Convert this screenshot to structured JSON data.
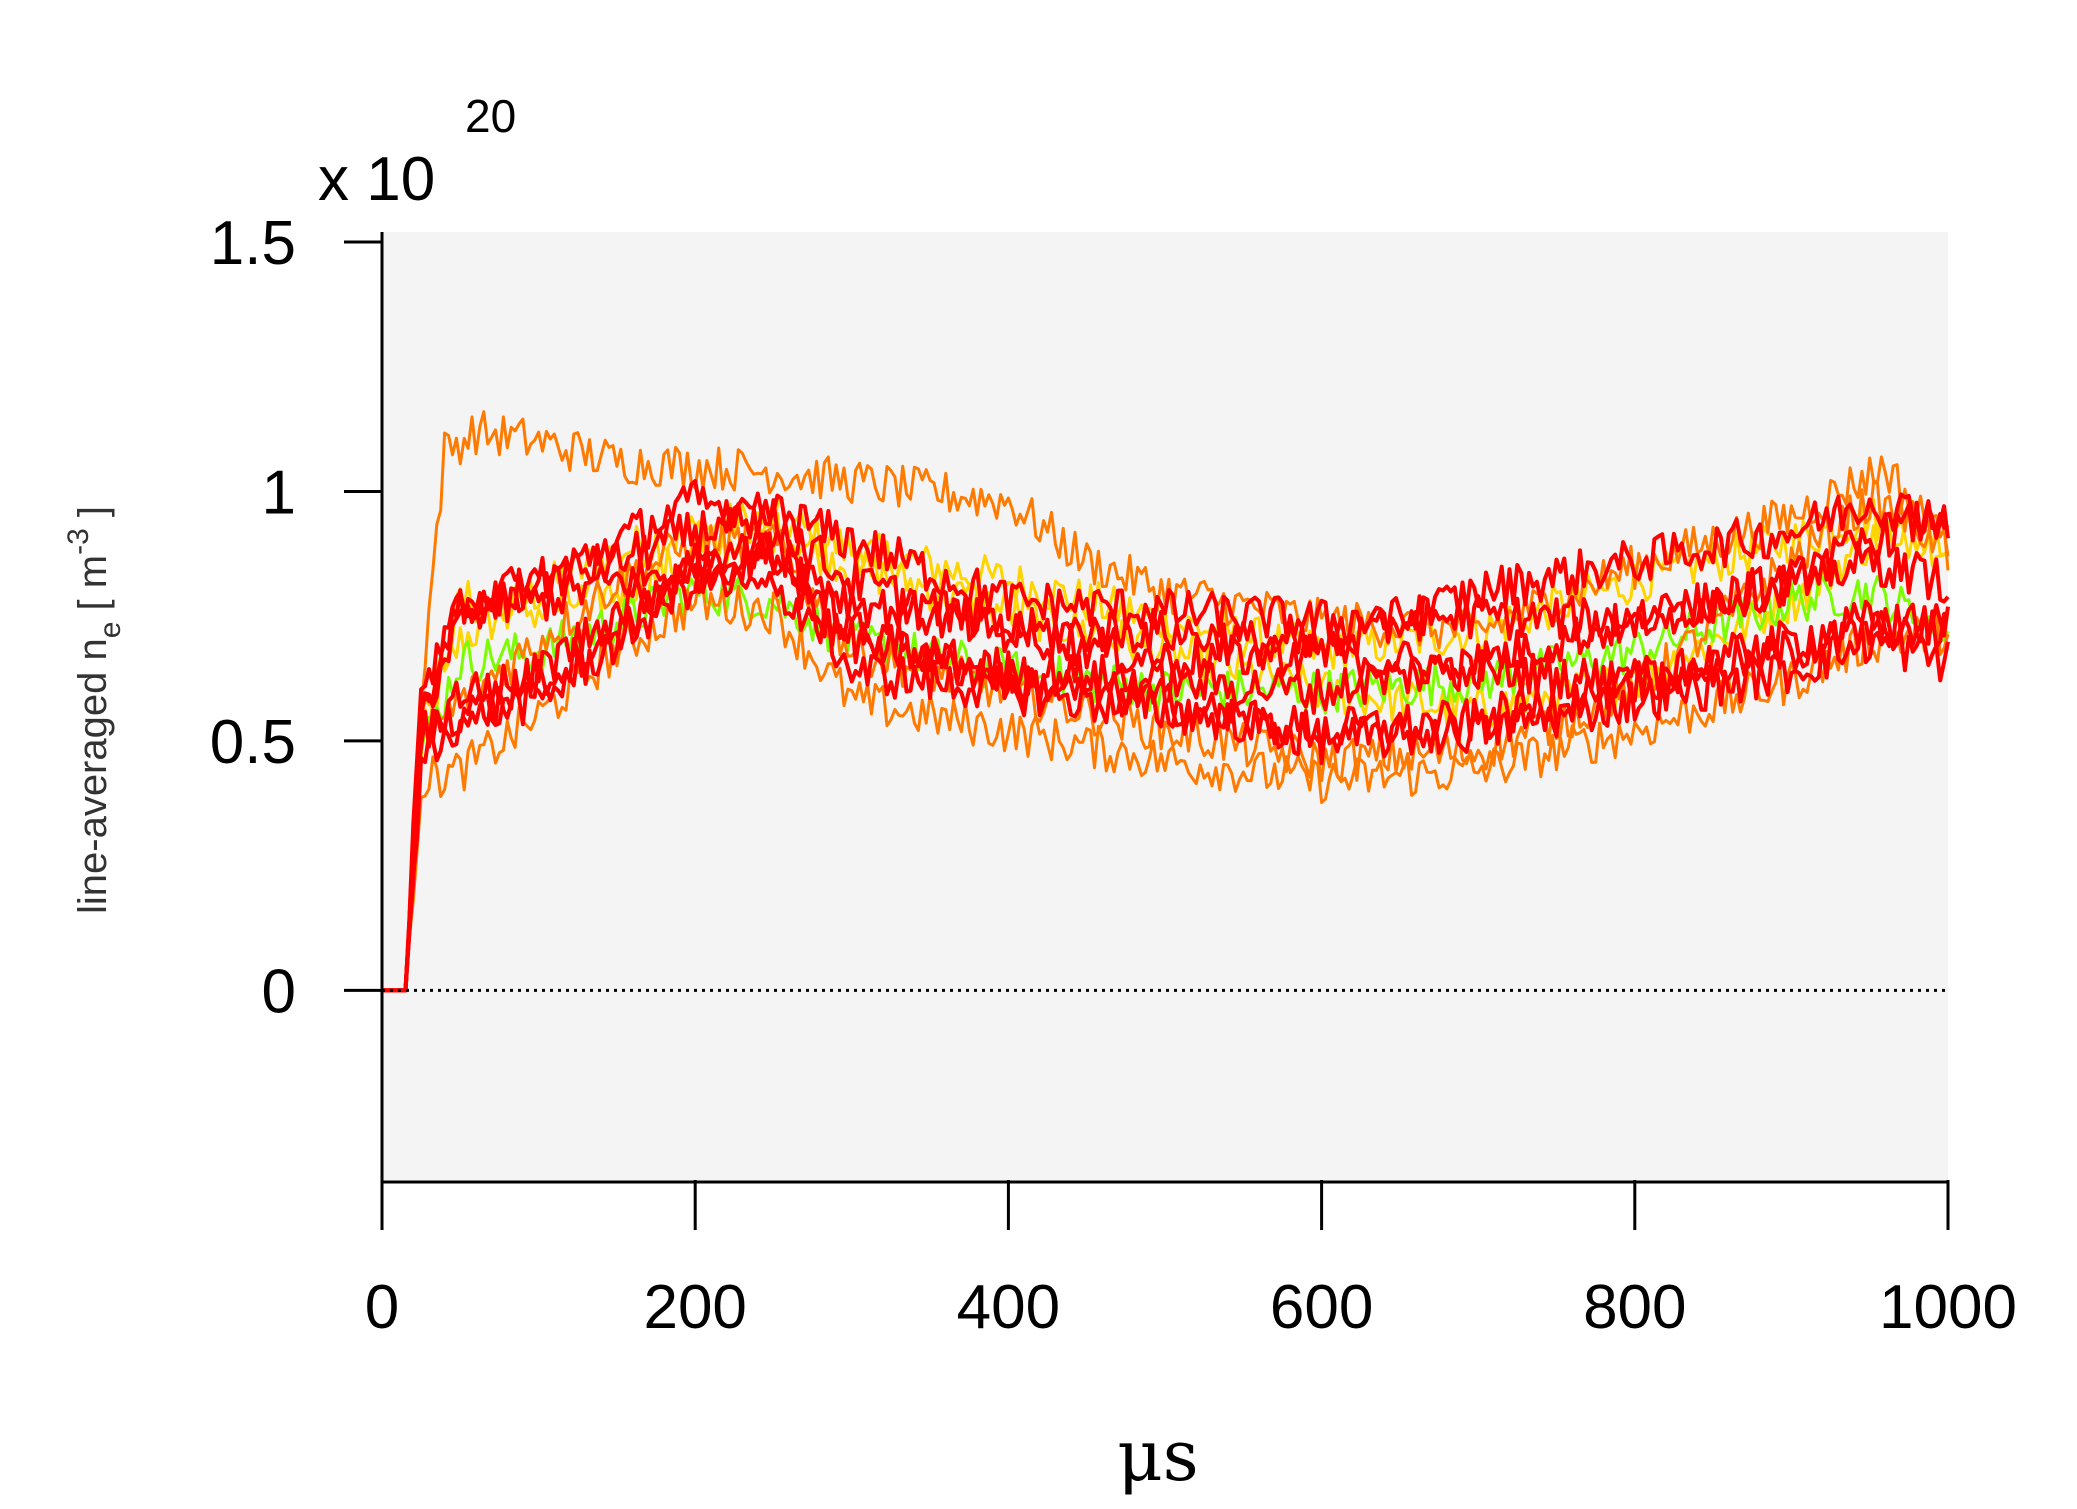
{
  "chart_data": {
    "type": "line",
    "xlabel": "μs",
    "ylabel_main": "line-averaged  n",
    "ylabel_sub": "e",
    "ylabel_unit_open": " [ m",
    "ylabel_unit_sup": "-3",
    "ylabel_unit_close": " ]",
    "y_multiplier": "x 10",
    "y_multiplier_exp": "20",
    "xlim": [
      0,
      1000
    ],
    "ylim": [
      -0.38,
      1.52
    ],
    "xticks": [
      0,
      200,
      400,
      600,
      800,
      1000
    ],
    "xtick_labels": [
      "0",
      "200",
      "400",
      "600",
      "800",
      "1000"
    ],
    "yticks": [
      0,
      0.5,
      1,
      1.5
    ],
    "ytick_labels": [
      "0",
      "0.5",
      "1",
      "1.5"
    ],
    "zero_line": {
      "y": 0,
      "style": "dotted"
    },
    "grid": false,
    "series": [
      {
        "color": "#FFD400",
        "x": [
          0,
          15,
          25,
          50,
          100,
          150,
          200,
          250,
          300,
          400,
          500,
          600,
          700,
          800,
          900,
          950,
          1000
        ],
        "y": [
          0,
          0,
          0.52,
          0.7,
          0.8,
          0.88,
          0.92,
          0.95,
          0.88,
          0.82,
          0.74,
          0.68,
          0.72,
          0.82,
          0.9,
          0.95,
          0.88
        ]
      },
      {
        "color": "#FFD400",
        "x": [
          0,
          15,
          25,
          50,
          100,
          150,
          200,
          250,
          300,
          400,
          500,
          600,
          700,
          800,
          900,
          950,
          1000
        ],
        "y": [
          0,
          0,
          0.5,
          0.78,
          0.76,
          0.8,
          0.87,
          0.92,
          0.85,
          0.76,
          0.68,
          0.6,
          0.56,
          0.62,
          0.78,
          0.9,
          0.92
        ]
      },
      {
        "color": "#7CFC00",
        "x": [
          0,
          15,
          25,
          50,
          100,
          150,
          200,
          250,
          300,
          400,
          500,
          600,
          700,
          800,
          900,
          950,
          1000
        ],
        "y": [
          0,
          0,
          0.48,
          0.66,
          0.68,
          0.74,
          0.8,
          0.78,
          0.7,
          0.64,
          0.6,
          0.6,
          0.62,
          0.68,
          0.78,
          0.8,
          0.72
        ]
      },
      {
        "color": "#FF7A00",
        "x": [
          0,
          15,
          25,
          40,
          60,
          100,
          150,
          200,
          250,
          300,
          350,
          400,
          450,
          500,
          600,
          700,
          800,
          900,
          960,
          1000
        ],
        "y": [
          0,
          0,
          0.6,
          1.08,
          1.12,
          1.1,
          1.06,
          1.05,
          1.04,
          1.02,
          1.0,
          0.98,
          0.86,
          0.8,
          0.74,
          0.72,
          0.85,
          0.95,
          1.05,
          0.88
        ]
      },
      {
        "color": "#FF7A00",
        "x": [
          0,
          15,
          25,
          50,
          100,
          150,
          200,
          250,
          300,
          400,
          500,
          600,
          700,
          800,
          900,
          950,
          1000
        ],
        "y": [
          0,
          0,
          0.42,
          0.44,
          0.55,
          0.68,
          0.78,
          0.76,
          0.58,
          0.52,
          0.46,
          0.42,
          0.44,
          0.52,
          0.62,
          0.7,
          0.72
        ]
      },
      {
        "color": "#FF7A00",
        "x": [
          0,
          15,
          25,
          50,
          100,
          150,
          200,
          250,
          300,
          400,
          500,
          600,
          700,
          800,
          900,
          950,
          1000
        ],
        "y": [
          0,
          0,
          0.5,
          0.58,
          0.7,
          0.82,
          0.9,
          0.9,
          0.68,
          0.6,
          0.52,
          0.46,
          0.48,
          0.6,
          0.86,
          0.98,
          0.9
        ]
      },
      {
        "color": "#FF0000",
        "x": [
          0,
          15,
          25,
          50,
          100,
          150,
          200,
          250,
          300,
          400,
          500,
          600,
          700,
          800,
          900,
          950,
          1000
        ],
        "y": [
          0,
          0,
          0.55,
          0.74,
          0.82,
          0.86,
          0.92,
          0.96,
          0.9,
          0.78,
          0.76,
          0.74,
          0.75,
          0.74,
          0.82,
          0.9,
          0.96
        ]
      },
      {
        "color": "#FF0000",
        "x": [
          0,
          15,
          25,
          50,
          100,
          150,
          200,
          250,
          300,
          400,
          500,
          600,
          700,
          800,
          900,
          950,
          1000
        ],
        "y": [
          0,
          0,
          0.58,
          0.76,
          0.78,
          0.82,
          0.84,
          0.88,
          0.78,
          0.72,
          0.72,
          0.68,
          0.64,
          0.62,
          0.68,
          0.72,
          0.74
        ]
      },
      {
        "color": "#FF0000",
        "x": [
          0,
          15,
          25,
          50,
          100,
          150,
          200,
          250,
          300,
          400,
          500,
          600,
          700,
          800,
          900,
          950,
          1000
        ],
        "y": [
          0,
          0,
          0.5,
          0.6,
          0.62,
          0.72,
          0.84,
          0.88,
          0.64,
          0.6,
          0.56,
          0.52,
          0.54,
          0.62,
          0.7,
          0.74,
          0.72
        ]
      },
      {
        "color": "#FF0000",
        "x": [
          0,
          15,
          25,
          50,
          100,
          150,
          200,
          250,
          300,
          400,
          500,
          600,
          700,
          800,
          900,
          950,
          1000
        ],
        "y": [
          0,
          0,
          0.52,
          0.56,
          0.58,
          0.7,
          0.82,
          0.8,
          0.7,
          0.64,
          0.62,
          0.6,
          0.66,
          0.74,
          0.82,
          0.86,
          0.82
        ]
      },
      {
        "color": "#FF0000",
        "x": [
          0,
          15,
          25,
          50,
          100,
          150,
          200,
          250,
          300,
          400,
          500,
          600,
          700,
          800,
          900,
          950,
          1000
        ],
        "y": [
          0,
          0,
          0.54,
          0.78,
          0.82,
          0.9,
          0.98,
          0.94,
          0.82,
          0.72,
          0.66,
          0.68,
          0.8,
          0.86,
          0.92,
          0.98,
          0.94
        ]
      },
      {
        "color": "#FF0000",
        "x": [
          0,
          15,
          25,
          50,
          100,
          150,
          200,
          250,
          300,
          400,
          500,
          600,
          700,
          800,
          900,
          950,
          1000
        ],
        "y": [
          0,
          0,
          0.46,
          0.52,
          0.64,
          0.76,
          0.86,
          0.9,
          0.72,
          0.62,
          0.58,
          0.5,
          0.52,
          0.58,
          0.64,
          0.7,
          0.66
        ]
      }
    ]
  }
}
